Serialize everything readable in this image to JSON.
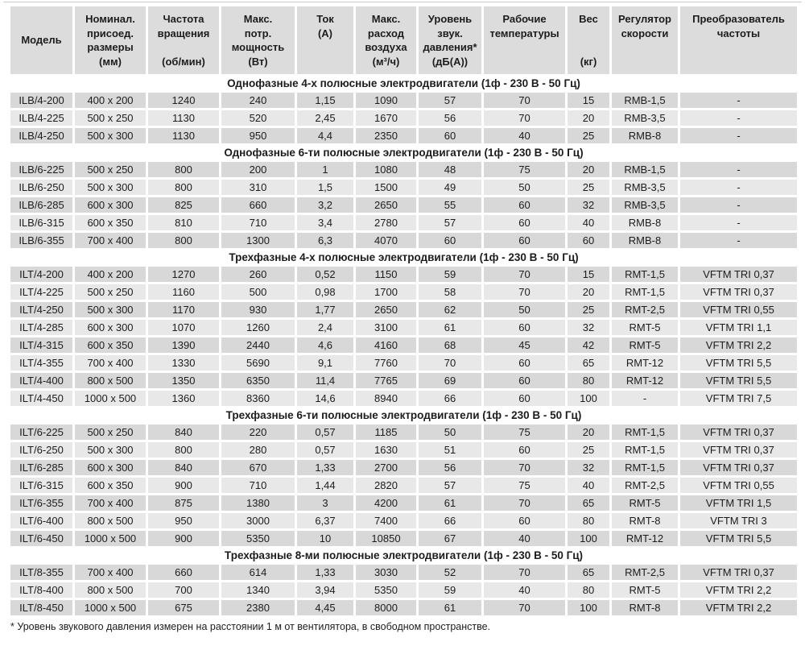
{
  "colors": {
    "header_bg": "#dcdcdc",
    "row_dark": "#d8d8d8",
    "row_light": "#e8e8e8",
    "text": "#1c1c1c"
  },
  "table": {
    "columns": [
      {
        "key": "model",
        "label": "Модель"
      },
      {
        "key": "size",
        "label": "Номинал.\nприсоед.\nразмеры\n(мм)"
      },
      {
        "key": "rpm",
        "label": "Частота\nвращения\n\n(об/мин)"
      },
      {
        "key": "power",
        "label": "Макс.\nпотр.\nмощность\n(Вт)"
      },
      {
        "key": "current",
        "label": "Ток\n(А)"
      },
      {
        "key": "airflow",
        "label": "Макс.\nрасход\nвоздуха\n(м³/ч)"
      },
      {
        "key": "noise",
        "label": "Уровень\nзвук.\nдавления*\n(дБ(А))"
      },
      {
        "key": "temp",
        "label": "Рабочие\nтемпературы"
      },
      {
        "key": "weight",
        "label": "Вес\n\n\n(кг)"
      },
      {
        "key": "speed-regulator",
        "label": "Регулятор\nскорости"
      },
      {
        "key": "freq-converter",
        "label": "Преобразователь\nчастоты"
      }
    ],
    "sections": [
      {
        "title": "Однофазные 4-х полюсные электродвигатели (1ф - 230 В - 50 Гц)",
        "rows": [
          [
            "ILB/4-200",
            "400 x 200",
            "1240",
            "240",
            "1,15",
            "1090",
            "57",
            "70",
            "15",
            "RMB-1,5",
            "-"
          ],
          [
            "ILB/4-225",
            "500 x 250",
            "1130",
            "520",
            "2,45",
            "1670",
            "56",
            "70",
            "20",
            "RMB-3,5",
            "-"
          ],
          [
            "ILB/4-250",
            "500 x 300",
            "1130",
            "950",
            "4,4",
            "2350",
            "60",
            "40",
            "25",
            "RMB-8",
            "-"
          ]
        ]
      },
      {
        "title": "Однофазные 6-ти полюсные электродвигатели (1ф - 230 В - 50 Гц)",
        "rows": [
          [
            "ILB/6-225",
            "500 x 250",
            "800",
            "200",
            "1",
            "1080",
            "48",
            "75",
            "20",
            "RMB-1,5",
            "-"
          ],
          [
            "ILB/6-250",
            "500 x 300",
            "800",
            "310",
            "1,5",
            "1500",
            "49",
            "50",
            "25",
            "RMB-3,5",
            "-"
          ],
          [
            "ILB/6-285",
            "600 x 300",
            "825",
            "660",
            "3,2",
            "2650",
            "55",
            "60",
            "32",
            "RMB-3,5",
            "-"
          ],
          [
            "ILB/6-315",
            "600 x 350",
            "810",
            "710",
            "3,4",
            "2780",
            "57",
            "60",
            "40",
            "RMB-8",
            "-"
          ],
          [
            "ILB/6-355",
            "700 x 400",
            "800",
            "1300",
            "6,3",
            "4070",
            "60",
            "60",
            "60",
            "RMB-8",
            "-"
          ]
        ]
      },
      {
        "title": "Трехфазные 4-х полюсные электродвигатели (1ф - 230 В - 50 Гц)",
        "rows": [
          [
            "ILT/4-200",
            "400 x 200",
            "1270",
            "260",
            "0,52",
            "1150",
            "59",
            "70",
            "15",
            "RMT-1,5",
            "VFTM TRI 0,37"
          ],
          [
            "ILT/4-225",
            "500 x 250",
            "1160",
            "500",
            "0,98",
            "1700",
            "58",
            "70",
            "20",
            "RMT-1,5",
            "VFTM TRI 0,37"
          ],
          [
            "ILT/4-250",
            "500 x 300",
            "1170",
            "930",
            "1,77",
            "2650",
            "62",
            "50",
            "25",
            "RMT-2,5",
            "VFTM TRI 0,55"
          ],
          [
            "ILT/4-285",
            "600 x 300",
            "1070",
            "1260",
            "2,4",
            "3100",
            "61",
            "60",
            "32",
            "RMT-5",
            "VFTM TRI 1,1"
          ],
          [
            "ILT/4-315",
            "600 x 350",
            "1390",
            "2440",
            "4,6",
            "4160",
            "68",
            "45",
            "42",
            "RMT-5",
            "VFTM TRI 2,2"
          ],
          [
            "ILT/4-355",
            "700 x 400",
            "1330",
            "5690",
            "9,1",
            "7760",
            "70",
            "60",
            "65",
            "RMT-12",
            "VFTM TRI 5,5"
          ],
          [
            "ILT/4-400",
            "800 x 500",
            "1350",
            "6350",
            "11,4",
            "7765",
            "69",
            "60",
            "80",
            "RMT-12",
            "VFTM TRI 5,5"
          ],
          [
            "ILT/4-450",
            "1000 x 500",
            "1360",
            "8360",
            "14,6",
            "8940",
            "66",
            "60",
            "100",
            "-",
            "VFTM TRI 7,5"
          ]
        ]
      },
      {
        "title": "Трехфазные 6-ти полюсные электродвигатели (1ф - 230 В - 50 Гц)",
        "rows": [
          [
            "ILT/6-225",
            "500 x 250",
            "840",
            "220",
            "0,57",
            "1185",
            "50",
            "75",
            "20",
            "RMT-1,5",
            "VFTM TRI 0,37"
          ],
          [
            "ILT/6-250",
            "500 x 300",
            "800",
            "280",
            "0,57",
            "1630",
            "51",
            "60",
            "25",
            "RMT-1,5",
            "VFTM TRI 0,37"
          ],
          [
            "ILT/6-285",
            "600 x 300",
            "840",
            "670",
            "1,33",
            "2700",
            "56",
            "70",
            "32",
            "RMT-1,5",
            "VFTM TRI 0,37"
          ],
          [
            "ILT/6-315",
            "600 x 350",
            "900",
            "710",
            "1,44",
            "2820",
            "57",
            "75",
            "40",
            "RMT-2,5",
            "VFTM TRI 0,55"
          ],
          [
            "ILT/6-355",
            "700 x 400",
            "875",
            "1380",
            "3",
            "4200",
            "61",
            "70",
            "65",
            "RMT-5",
            "VFTM TRI 1,5"
          ],
          [
            "ILT/6-400",
            "800 x 500",
            "950",
            "3000",
            "6,37",
            "7400",
            "66",
            "60",
            "80",
            "RMT-8",
            "VFTM TRI 3"
          ],
          [
            "ILT/6-450",
            "1000 x 500",
            "900",
            "5350",
            "10",
            "10850",
            "67",
            "40",
            "100",
            "RMT-12",
            "VFTM TRI 5,5"
          ]
        ]
      },
      {
        "title": "Трехфазные 8-ми полюсные электродвигатели (1ф - 230 В - 50 Гц)",
        "rows": [
          [
            "ILT/8-355",
            "700 x 400",
            "660",
            "614",
            "1,33",
            "3030",
            "52",
            "70",
            "65",
            "RMT-2,5",
            "VFTM TRI 0,37"
          ],
          [
            "ILT/8-400",
            "800 x 500",
            "700",
            "1340",
            "3,94",
            "5350",
            "59",
            "40",
            "80",
            "RMT-5",
            "VFTM TRI 2,2"
          ],
          [
            "ILT/8-450",
            "1000 x 500",
            "675",
            "2380",
            "4,45",
            "8000",
            "61",
            "70",
            "100",
            "RMT-8",
            "VFTM TRI 2,2"
          ]
        ]
      }
    ],
    "footnote": "* Уровень звукового давления измерен на расстоянии 1 м от вентилятора, в свободном пространстве."
  }
}
